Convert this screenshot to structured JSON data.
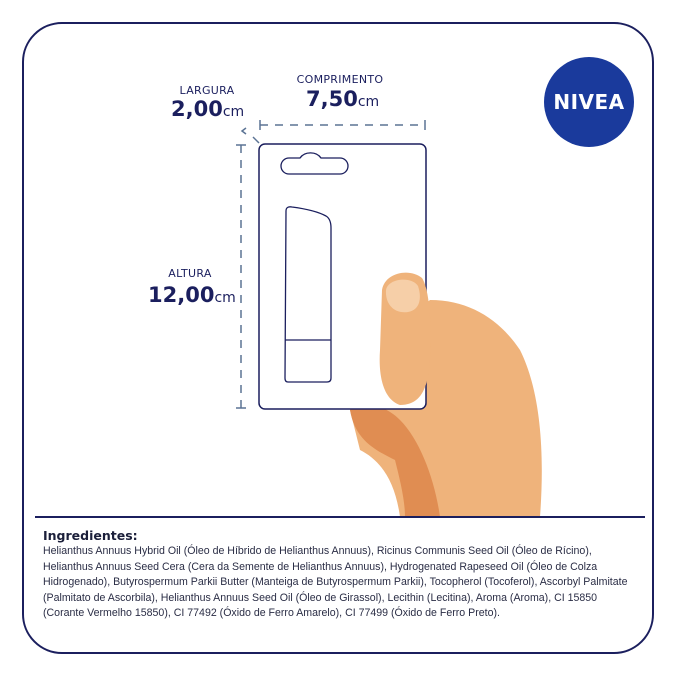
{
  "brand": {
    "logo_text": "NIVEA",
    "color": "#1a3a9c"
  },
  "dimensions": {
    "width": {
      "label": "LARGURA",
      "value": "2,00",
      "unit": "cm"
    },
    "length": {
      "label": "COMPRIMENTO",
      "value": "7,50",
      "unit": "cm"
    },
    "height": {
      "label": "ALTURA",
      "value": "12,00",
      "unit": "cm"
    }
  },
  "ingredients": {
    "title": "Ingredientes:",
    "text": "Helianthus Annuus Hybrid Oil (Óleo de Híbrido de Helianthus Annuus), Ricinus Communis Seed Oil (Óleo de Rícino), Helianthus Annuus Seed Cera (Cera da Semente de Helianthus Annuus), Hydrogenated Rapeseed Oil (Óleo de Colza Hidrogenado), Butyrospermum Parkii Butter (Manteiga de Butyrospermum Parkii), Tocopherol (Tocoferol), Ascorbyl Palmitate (Palmitato de Ascorbila), Helianthus Annuus Seed Oil (Óleo de Girassol), Lecithin (Lecitina), Aroma (Aroma), CI 15850 (Corante Vermelho 15850), CI 77492 (Óxido de Ferro Amarelo), CI 77499 (Óxido de Ferro Preto)."
  },
  "colors": {
    "navy": "#1b1f5e",
    "skin": "#efb37b",
    "skin_shadow": "#e08d52"
  }
}
